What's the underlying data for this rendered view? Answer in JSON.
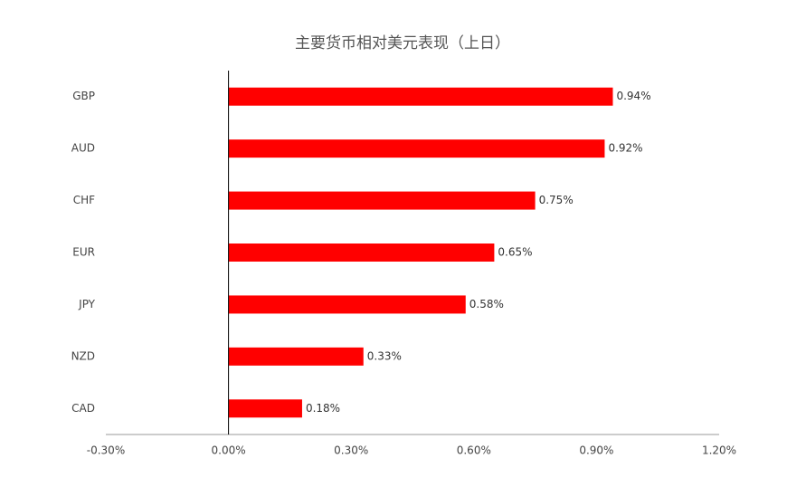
{
  "chart_data": {
    "type": "bar",
    "orientation": "horizontal",
    "title": "主要货币相对美元表现（上日）",
    "categories": [
      "GBP",
      "AUD",
      "CHF",
      "EUR",
      "JPY",
      "NZD",
      "CAD"
    ],
    "values": [
      0.94,
      0.92,
      0.75,
      0.65,
      0.58,
      0.33,
      0.18
    ],
    "value_labels": [
      "0.94%",
      "0.92%",
      "0.75%",
      "0.65%",
      "0.58%",
      "0.33%",
      "0.18%"
    ],
    "color": "#ff0000",
    "xlim": [
      -0.3,
      1.2
    ],
    "xticks": [
      {
        "value": -0.3,
        "label": "-0.30%"
      },
      {
        "value": 0,
        "label": "0.00%"
      },
      {
        "value": 0.3,
        "label": "0.30%"
      },
      {
        "value": 0.6,
        "label": "0.60%"
      },
      {
        "value": 0.9,
        "label": "0.90%"
      },
      {
        "value": 1.2,
        "label": "1.20%"
      }
    ],
    "grid": false
  }
}
